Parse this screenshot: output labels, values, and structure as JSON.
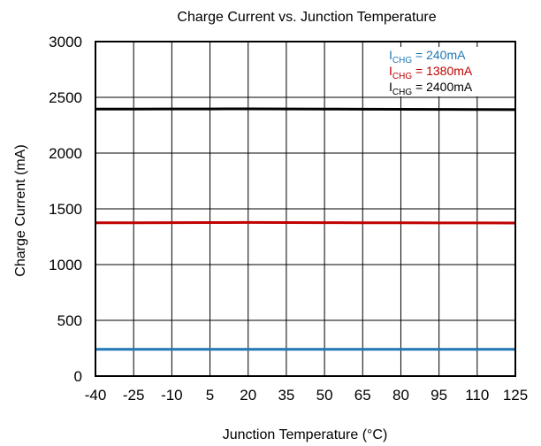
{
  "chart_data": {
    "type": "line",
    "title": "Charge Current vs. Junction Temperature",
    "xlabel": "Junction Temperature (°C)",
    "ylabel": "Charge Current (mA)",
    "x_ticks": [
      -40,
      -25,
      -10,
      5,
      20,
      35,
      50,
      65,
      80,
      95,
      110,
      125
    ],
    "x_tick_labels": [
      "-40",
      "-25",
      "-10",
      "5",
      "20",
      "35",
      "50",
      "65",
      "80",
      "95",
      "110",
      "125"
    ],
    "xlim": [
      -40,
      125
    ],
    "y_ticks": [
      0,
      500,
      1000,
      1500,
      2000,
      2500,
      3000
    ],
    "y_tick_labels": [
      "0",
      "500",
      "1000",
      "1500",
      "2000",
      "2500",
      "3000"
    ],
    "ylim": [
      0,
      3000
    ],
    "grid": true,
    "legend_position": "top-right",
    "x": [
      -40,
      -25,
      -10,
      5,
      20,
      35,
      50,
      65,
      80,
      95,
      110,
      125
    ],
    "series": [
      {
        "legend_main": "I",
        "legend_sub": "CHG",
        "legend_value": " = 240mA",
        "color": "#1f77b4",
        "values": [
          240,
          240,
          240,
          240,
          240,
          240,
          240,
          240,
          240,
          240,
          240,
          240
        ]
      },
      {
        "legend_main": "I",
        "legend_sub": "CHG",
        "legend_value": " = 1380mA",
        "color": "#c00000",
        "values": [
          1375,
          1375,
          1376,
          1377,
          1378,
          1377,
          1376,
          1375,
          1375,
          1374,
          1374,
          1373
        ]
      },
      {
        "legend_main": "I",
        "legend_sub": "CHG",
        "legend_value": " = 2400mA",
        "color": "#000000",
        "values": [
          2395,
          2395,
          2396,
          2396,
          2397,
          2396,
          2395,
          2394,
          2393,
          2392,
          2391,
          2390
        ]
      }
    ]
  }
}
